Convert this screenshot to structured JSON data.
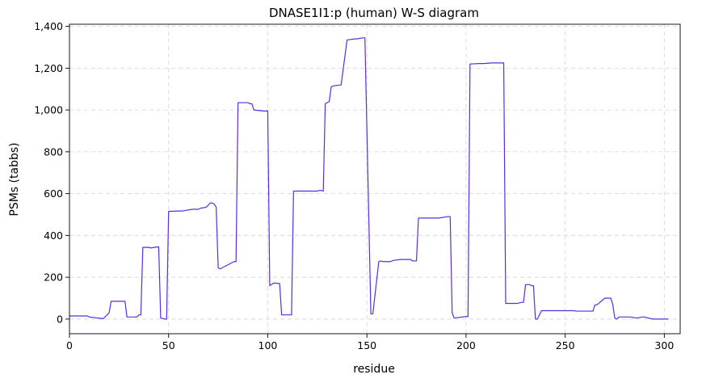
{
  "chart_data": {
    "type": "line",
    "title": "DNASE1I1:p (human) W-S diagram",
    "xlabel": "residue",
    "ylabel": "PSMs (tabbs)",
    "xlim": [
      0,
      308
    ],
    "ylim": [
      -70,
      1410
    ],
    "xticks": [
      0,
      50,
      100,
      150,
      200,
      250,
      300
    ],
    "yticks": [
      0,
      200,
      400,
      600,
      800,
      1000,
      1200,
      1400
    ],
    "ytick_labels": [
      "0",
      "200",
      "400",
      "600",
      "800",
      "1,000",
      "1,200",
      "1,400"
    ],
    "grid": true,
    "line_color": "#5a2ee0",
    "series": [
      {
        "x": [
          0,
          9,
          10,
          17,
          19,
          20,
          21,
          26,
          28,
          29,
          32,
          34,
          35,
          36,
          37,
          40,
          41,
          44,
          45,
          46,
          48,
          49,
          50,
          55,
          57,
          62,
          65,
          66,
          69,
          71,
          72,
          73,
          74,
          75,
          76,
          83,
          84,
          85,
          86,
          90,
          91,
          92,
          93,
          98,
          100,
          101,
          103,
          104,
          105,
          106,
          107,
          112,
          113,
          125,
          126,
          127,
          128,
          129,
          131,
          132,
          133,
          137,
          140,
          144,
          145,
          148,
          149,
          152,
          153,
          156,
          157,
          158,
          162,
          163,
          167,
          168,
          172,
          173,
          175,
          176,
          185,
          186,
          191,
          192,
          193,
          194,
          200,
          201,
          202,
          207,
          209,
          213,
          214,
          219,
          220,
          221,
          226,
          228,
          229,
          230,
          232,
          233,
          234,
          235,
          236,
          237,
          238,
          239,
          240,
          246,
          247,
          254,
          256,
          257,
          258,
          262,
          263,
          264,
          265,
          266,
          270,
          271,
          273,
          274,
          275,
          276,
          277,
          281,
          282,
          283,
          286,
          289,
          290,
          294,
          302
        ],
        "y": [
          15,
          15,
          10,
          2,
          20,
          30,
          85,
          85,
          85,
          10,
          10,
          10,
          20,
          20,
          343,
          343,
          340,
          345,
          345,
          5,
          0,
          0,
          515,
          517,
          517,
          525,
          525,
          530,
          535,
          555,
          555,
          550,
          535,
          245,
          240,
          275,
          275,
          1035,
          1035,
          1035,
          1030,
          1030,
          1000,
          995,
          995,
          160,
          172,
          172,
          170,
          170,
          20,
          20,
          612,
          612,
          615,
          615,
          612,
          1030,
          1040,
          1110,
          1115,
          1120,
          1335,
          1340,
          1340,
          1345,
          1345,
          25,
          25,
          275,
          278,
          275,
          275,
          280,
          285,
          285,
          285,
          278,
          278,
          483,
          483,
          483,
          490,
          490,
          30,
          5,
          12,
          12,
          1220,
          1222,
          1222,
          1225,
          1225,
          1225,
          75,
          75,
          75,
          80,
          80,
          165,
          165,
          160,
          160,
          0,
          0,
          20,
          40,
          40,
          40,
          40,
          40,
          40,
          38,
          38,
          38,
          38,
          38,
          38,
          68,
          68,
          100,
          100,
          100,
          70,
          5,
          0,
          10,
          10,
          10,
          10,
          5,
          10,
          10,
          0,
          0
        ]
      }
    ]
  }
}
